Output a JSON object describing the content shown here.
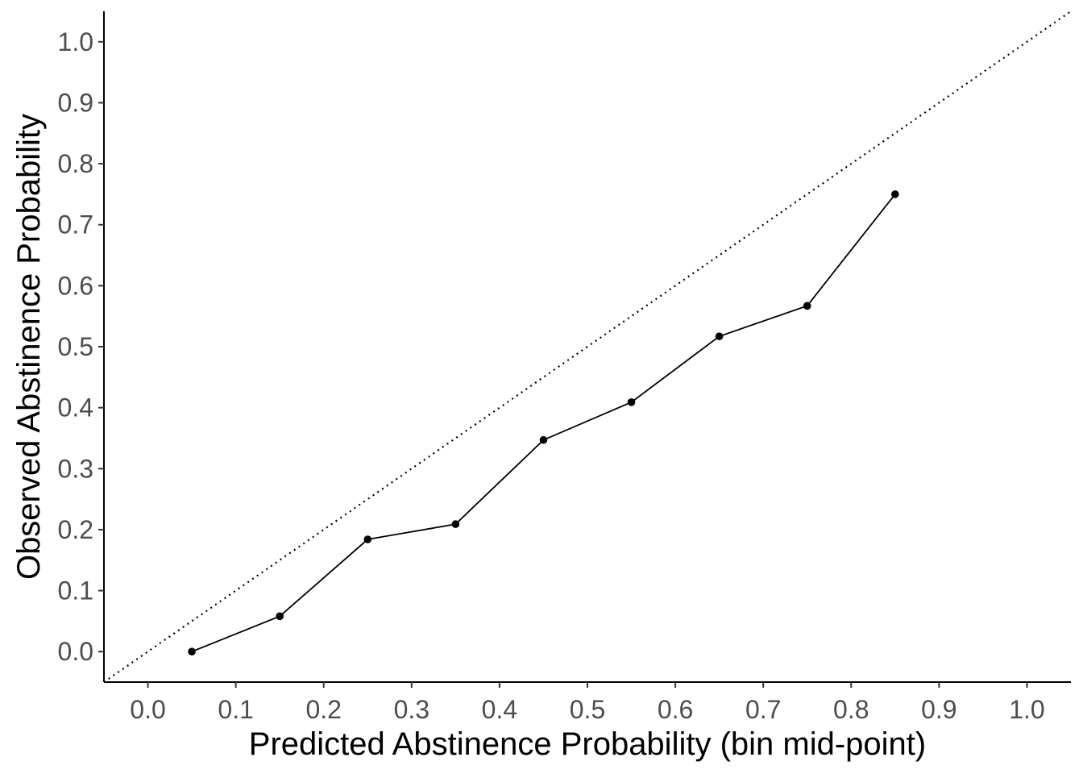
{
  "chart_data": {
    "type": "line",
    "xlabel": "Predicted Abstinence Probability (bin mid-point)",
    "ylabel": "Observed Abstinence Probability",
    "xlim": [
      -0.05,
      1.05
    ],
    "ylim": [
      -0.05,
      1.05
    ],
    "x_ticks": [
      "0.0",
      "0.1",
      "0.2",
      "0.3",
      "0.4",
      "0.5",
      "0.6",
      "0.7",
      "0.8",
      "0.9",
      "1.0"
    ],
    "y_ticks": [
      "0.0",
      "0.1",
      "0.2",
      "0.3",
      "0.4",
      "0.5",
      "0.6",
      "0.7",
      "0.8",
      "0.9",
      "1.0"
    ],
    "grid": false,
    "series": [
      {
        "x": [
          0.05,
          0.15,
          0.25,
          0.35,
          0.45,
          0.55,
          0.65,
          0.75,
          0.85
        ],
        "y": [
          0.0,
          0.058,
          0.184,
          0.209,
          0.347,
          0.409,
          0.517,
          0.567,
          0.75
        ],
        "style": "solid line with points",
        "color": "#000000"
      }
    ],
    "reference_line": {
      "type": "identity",
      "style": "dotted",
      "color": "#000000"
    }
  }
}
